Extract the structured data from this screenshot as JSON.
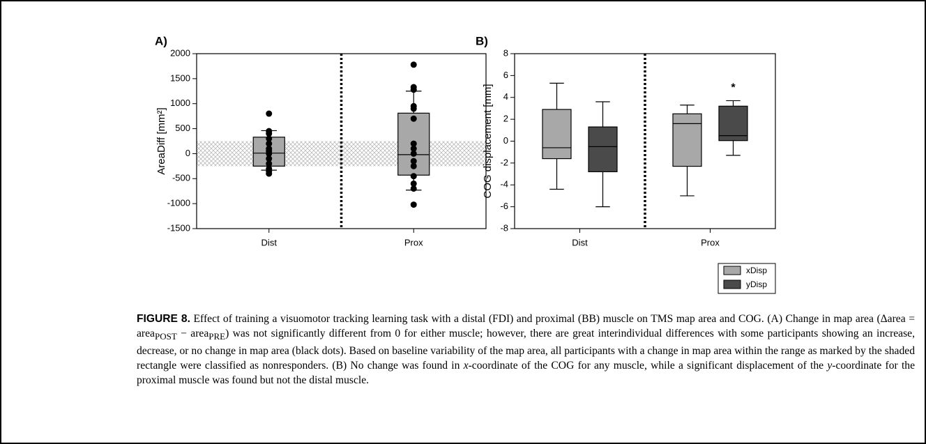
{
  "chart_data": [
    {
      "type": "box",
      "title": "A)",
      "ylabel": "AreaDiff [mm²]",
      "categories": [
        "Dist",
        "Prox"
      ],
      "color": "#a8a8a8",
      "boxes": [
        {
          "whisker_low": -330,
          "q1": -250,
          "median": 10,
          "q3": 330,
          "whisker_high": 460,
          "points": [
            800,
            450,
            400,
            300,
            200,
            100,
            50,
            0,
            -100,
            -200,
            -300,
            -350,
            -400
          ]
        },
        {
          "whisker_low": -730,
          "q1": -430,
          "median": -20,
          "q3": 810,
          "whisker_high": 1250,
          "points": [
            1780,
            1330,
            1280,
            950,
            900,
            700,
            200,
            100,
            0,
            -150,
            -250,
            -450,
            -600,
            -700,
            -1020
          ]
        }
      ],
      "band": [
        -250,
        250
      ],
      "ylim": [
        -1500,
        2000
      ],
      "yticks": [
        -1500,
        -1000,
        -500,
        0,
        500,
        1000,
        1500,
        2000
      ]
    },
    {
      "type": "box",
      "title": "B)",
      "ylabel": "COG displacement [mm]",
      "categories": [
        "Dist",
        "Prox"
      ],
      "series": [
        {
          "name": "xDisp",
          "color": "#a8a8a8",
          "boxes": [
            {
              "whisker_low": -4.4,
              "q1": -1.6,
              "median": -0.6,
              "q3": 2.9,
              "whisker_high": 5.3
            },
            {
              "whisker_low": -5.0,
              "q1": -2.3,
              "median": 1.6,
              "q3": 2.5,
              "whisker_high": 3.3
            }
          ]
        },
        {
          "name": "yDisp",
          "color": "#4a4a4a",
          "boxes": [
            {
              "whisker_low": -6.0,
              "q1": -2.8,
              "median": -0.5,
              "q3": 1.3,
              "whisker_high": 3.6
            },
            {
              "whisker_low": -1.3,
              "q1": 0.05,
              "median": 0.5,
              "q3": 3.2,
              "whisker_high": 3.7
            }
          ]
        }
      ],
      "annotation": "*",
      "ylim": [
        -8,
        8
      ],
      "yticks": [
        -8,
        -6,
        -4,
        -2,
        0,
        2,
        4,
        6,
        8
      ]
    }
  ],
  "caption": {
    "label": "FIGURE 8.",
    "segments": [
      " Effect of training a visuomotor tracking learning task with a distal (FDI) and proximal (BB) muscle on TMS map area and COG. (A) Change in map area (Δarea = area",
      "POST",
      " − area",
      "PRE",
      ") was not significantly different from 0 for either muscle; however, there are great interindividual differences with some participants showing an increase, decrease, or no change in map area (black dots). Based on baseline variability of the map area, all participants with a change in map area within the range as marked by the shaded rectangle were classified as nonresponders. (B) No change was found in ",
      "x",
      "-coordinate of the COG for any muscle, while a significant displacement of the ",
      "y",
      "-coordinate for the proximal muscle was found but not the distal muscle."
    ]
  }
}
